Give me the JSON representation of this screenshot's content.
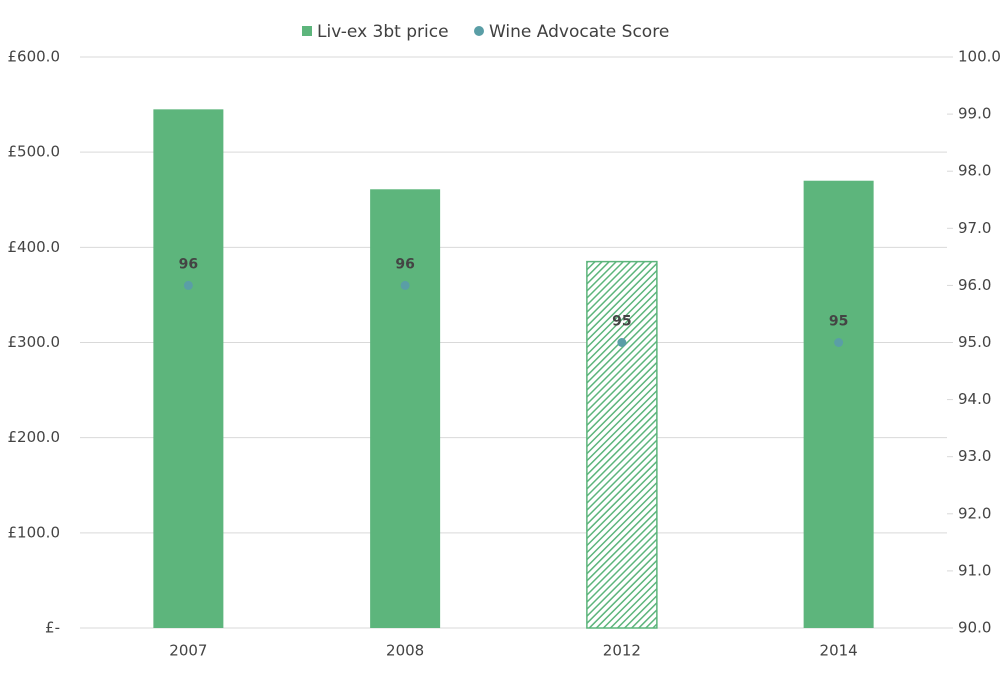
{
  "chart_data": {
    "type": "bar",
    "categories": [
      "2007",
      "2008",
      "2012",
      "2014"
    ],
    "series": [
      {
        "name": "Liv-ex 3bt price",
        "type": "bar",
        "color": "#5db57c",
        "values": [
          545,
          461,
          385,
          470
        ],
        "patterns": [
          "solid",
          "solid",
          "hatched",
          "solid"
        ]
      },
      {
        "name": "Wine Advocate Score",
        "type": "scatter",
        "axis": "y2",
        "color": "#5a9ea6",
        "values": [
          96,
          96,
          95,
          95
        ]
      }
    ],
    "ylim": [
      0,
      600
    ],
    "yticks": [
      {
        "value": 0,
        "label": "£-"
      },
      {
        "value": 100,
        "label": "£100.0"
      },
      {
        "value": 200,
        "label": "£200.0"
      },
      {
        "value": 300,
        "label": "£300.0"
      },
      {
        "value": 400,
        "label": "£400.0"
      },
      {
        "value": 500,
        "label": "£500.0"
      },
      {
        "value": 600,
        "label": "£600.0"
      }
    ],
    "y2lim": [
      90,
      100
    ],
    "y2ticks": [
      {
        "value": 90,
        "label": "90.0"
      },
      {
        "value": 91,
        "label": "91.0"
      },
      {
        "value": 92,
        "label": "92.0"
      },
      {
        "value": 93,
        "label": "93.0"
      },
      {
        "value": 94,
        "label": "94.0"
      },
      {
        "value": 95,
        "label": "95.0"
      },
      {
        "value": 96,
        "label": "96.0"
      },
      {
        "value": 97,
        "label": "97.0"
      },
      {
        "value": 98,
        "label": "98.0"
      },
      {
        "value": 99,
        "label": "99.0"
      },
      {
        "value": 100,
        "label": "100.0"
      }
    ],
    "grid": true,
    "legend": "top"
  }
}
